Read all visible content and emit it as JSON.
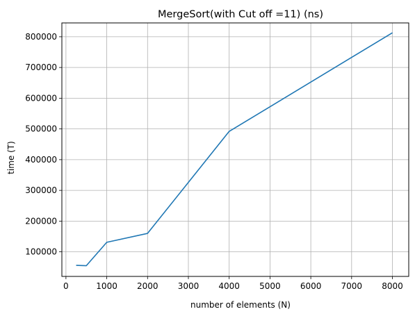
{
  "chart_data": {
    "type": "line",
    "title": "MergeSort(with Cut off =11) (ns)",
    "xlabel": "number of elements (N)",
    "ylabel": "time (T)",
    "xlim": [
      -100,
      8400
    ],
    "ylim": [
      20000,
      845000
    ],
    "xticks": [
      0,
      1000,
      2000,
      3000,
      4000,
      5000,
      6000,
      7000,
      8000
    ],
    "yticks": [
      100000,
      200000,
      300000,
      400000,
      500000,
      600000,
      700000,
      800000
    ],
    "xtick_labels": [
      "0",
      "1000",
      "2000",
      "3000",
      "4000",
      "5000",
      "6000",
      "7000",
      "8000"
    ],
    "ytick_labels": [
      "100000",
      "200000",
      "300000",
      "400000",
      "500000",
      "600000",
      "700000",
      "800000"
    ],
    "grid": true,
    "series": [
      {
        "color": "#1f77b4",
        "x": [
          250,
          500,
          1000,
          2000,
          4000,
          8000
        ],
        "y": [
          56000,
          55000,
          131000,
          160000,
          492000,
          813000
        ]
      }
    ]
  }
}
